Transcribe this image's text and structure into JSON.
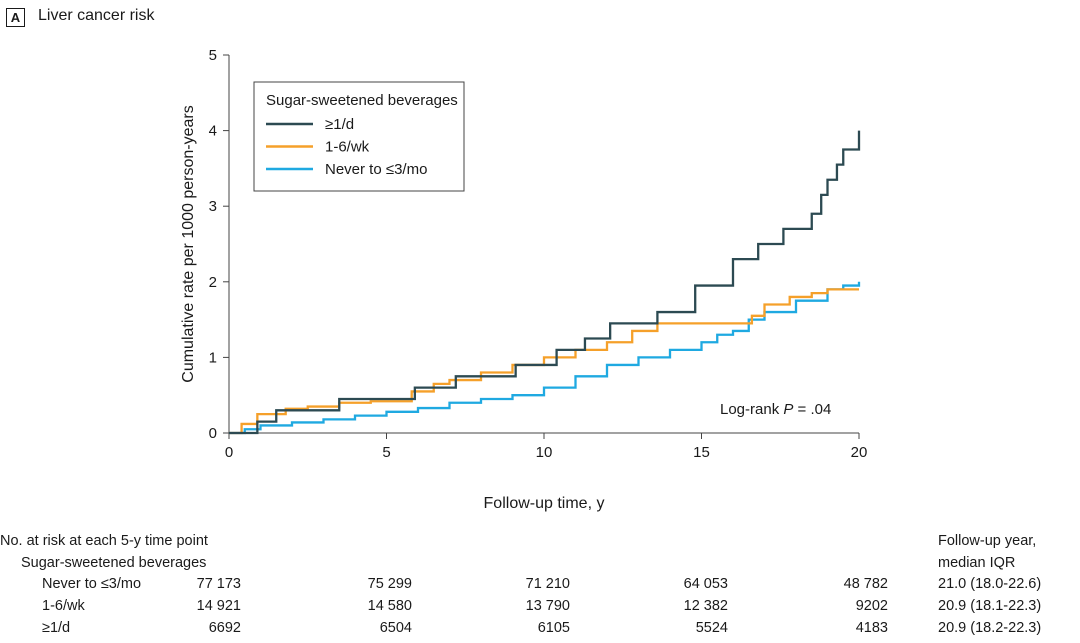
{
  "panel": {
    "label": "A",
    "title": "Liver cancer risk"
  },
  "chart_data": {
    "type": "line",
    "title": "Liver cancer risk",
    "xlabel": "Follow-up time, y",
    "ylabel": "Cumulative rate per 1000 person-years",
    "xlim": [
      0,
      20
    ],
    "ylim": [
      0,
      5
    ],
    "xticks": [
      "0",
      "5",
      "10",
      "15",
      "20"
    ],
    "yticks": [
      "0",
      "1",
      "2",
      "3",
      "4",
      "5"
    ],
    "grid": false,
    "step": true,
    "legend": {
      "title": "Sugar-sweetened beverages",
      "position": "top-left"
    },
    "annotation": {
      "prefix": "Log-rank ",
      "italic": "P",
      "suffix": " = .04"
    },
    "series": [
      {
        "name": "≥1/d",
        "color": "#2c4a52",
        "x": [
          0,
          0.9,
          1.5,
          3.5,
          5.9,
          7.2,
          9.1,
          10.4,
          11.3,
          12.1,
          13.6,
          14.8,
          16.0,
          16.8,
          17.6,
          18.5,
          18.8,
          19.0,
          19.3,
          19.5,
          20.0
        ],
        "y": [
          0,
          0.15,
          0.3,
          0.45,
          0.6,
          0.75,
          0.9,
          1.1,
          1.25,
          1.45,
          1.6,
          1.95,
          2.3,
          2.5,
          2.7,
          2.9,
          3.15,
          3.35,
          3.55,
          3.75,
          4.0
        ]
      },
      {
        "name": "1-6/wk",
        "color": "#f5a02a",
        "x": [
          0,
          0.4,
          0.9,
          1.8,
          2.5,
          3.5,
          4.5,
          5.8,
          6.5,
          7.0,
          8.0,
          9.0,
          10.0,
          11.0,
          12.0,
          12.8,
          13.6,
          16.6,
          17.0,
          17.8,
          18.5,
          19.0,
          20.0
        ],
        "y": [
          0,
          0.12,
          0.25,
          0.32,
          0.35,
          0.4,
          0.42,
          0.55,
          0.65,
          0.7,
          0.8,
          0.9,
          1.0,
          1.1,
          1.2,
          1.35,
          1.45,
          1.55,
          1.7,
          1.8,
          1.85,
          1.9,
          1.9
        ]
      },
      {
        "name": "Never to ≤3/mo",
        "color": "#1fa9e1",
        "x": [
          0,
          0.5,
          1.0,
          2.0,
          3.0,
          4.0,
          5.0,
          6.0,
          7.0,
          8.0,
          9.0,
          10.0,
          11.0,
          12.0,
          13.0,
          14.0,
          15.0,
          15.5,
          16.0,
          16.5,
          17.0,
          18.0,
          19.0,
          19.5,
          20.0
        ],
        "y": [
          0,
          0.05,
          0.1,
          0.14,
          0.18,
          0.23,
          0.28,
          0.33,
          0.4,
          0.45,
          0.5,
          0.6,
          0.75,
          0.9,
          1.0,
          1.1,
          1.2,
          1.3,
          1.35,
          1.5,
          1.6,
          1.75,
          1.9,
          1.95,
          2.0
        ]
      }
    ]
  },
  "risk_table": {
    "header": "No. at risk at each 5-y time point",
    "subheader": "Sugar-sweetened beverages",
    "followup_header": [
      "Follow-up year,",
      "median IQR"
    ],
    "rows": [
      {
        "label": "Never to ≤3/mo",
        "values": [
          "77 173",
          "75 299",
          "71 210",
          "64 053",
          "48 782"
        ],
        "followup": "21.0 (18.0-22.6)"
      },
      {
        "label": "1-6/wk",
        "values": [
          "14 921",
          "14 580",
          "13 790",
          "12 382",
          "9202"
        ],
        "followup": "20.9 (18.1-22.3)"
      },
      {
        "label": "≥1/d",
        "values": [
          "6692",
          "6504",
          "6105",
          "5524",
          "4183"
        ],
        "followup": "20.9 (18.2-22.3)"
      }
    ]
  }
}
